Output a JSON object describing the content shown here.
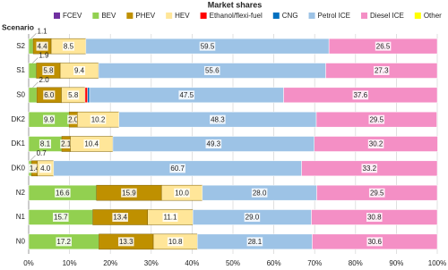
{
  "chart_data": {
    "type": "stacked-bar-horizontal",
    "title": "Market shares",
    "y_label": "Scenario",
    "categories": [
      "S2",
      "S1",
      "S0",
      "DK2",
      "DK1",
      "DK0",
      "N2",
      "N1",
      "N0"
    ],
    "series": [
      {
        "name": "FCEV",
        "color": "#7030a0",
        "values": [
          null,
          null,
          null,
          null,
          null,
          null,
          null,
          null,
          null
        ]
      },
      {
        "name": "BEV",
        "color": "#92d050",
        "values": [
          1.1,
          1.9,
          2.0,
          9.9,
          8.1,
          0.7,
          16.6,
          15.7,
          17.2
        ],
        "value_labels": [
          "1.1",
          "1.9",
          "2.0",
          "9.9",
          "8.1",
          "0.7",
          "16.6",
          "15.7",
          "17.2"
        ]
      },
      {
        "name": "PHEV",
        "color": "#bf9000",
        "values": [
          4.4,
          5.8,
          6.0,
          2.0,
          2.1,
          1.4,
          15.9,
          13.4,
          13.3
        ],
        "value_labels": [
          "4.4",
          "5.8",
          "6.0",
          "2.0",
          "2.1",
          "1.4",
          "15.9",
          "13.4",
          "13.3"
        ]
      },
      {
        "name": "HEV",
        "color": "#ffe699",
        "values": [
          8.5,
          9.4,
          5.8,
          10.2,
          10.4,
          4.0,
          10.0,
          11.1,
          10.8
        ],
        "value_labels": [
          "8.5",
          "9.4",
          "5.8",
          "10.2",
          "10.4",
          "4.0",
          "10.0",
          "11.1",
          "10.8"
        ]
      },
      {
        "name": "Ethanol/flexi-fuel",
        "color": "#ff0000",
        "values": [
          null,
          null,
          0.6,
          null,
          null,
          null,
          null,
          null,
          null
        ]
      },
      {
        "name": "CNG",
        "color": "#0070c0",
        "values": [
          null,
          null,
          0.5,
          null,
          null,
          null,
          null,
          null,
          null
        ]
      },
      {
        "name": "Petrol ICE",
        "color": "#9dc3e6",
        "values": [
          59.5,
          55.6,
          47.5,
          48.3,
          49.3,
          60.7,
          28.0,
          29.0,
          28.1
        ],
        "value_labels": [
          "59.5",
          "55.6",
          "47.5",
          "48.3",
          "49.3",
          "60.7",
          "28.0",
          "29.0",
          "28.1"
        ]
      },
      {
        "name": "Diesel ICE",
        "color": "#f48fc5",
        "values": [
          26.5,
          27.3,
          37.6,
          29.5,
          30.2,
          33.2,
          29.5,
          30.8,
          30.6
        ],
        "value_labels": [
          "26.5",
          "27.3",
          "37.6",
          "29.5",
          "30.2",
          "33.2",
          "29.5",
          "30.8",
          "30.6"
        ]
      },
      {
        "name": "Other",
        "color": "#ffff00",
        "values": [
          null,
          null,
          null,
          null,
          null,
          null,
          null,
          null,
          null
        ]
      }
    ],
    "xlim": [
      0,
      100
    ],
    "xticks": [
      {
        "value": 0,
        "label": "0%"
      },
      {
        "value": 10,
        "label": "10%"
      },
      {
        "value": 20,
        "label": "20%"
      },
      {
        "value": 30,
        "label": "30%"
      },
      {
        "value": 40,
        "label": "40%"
      },
      {
        "value": 50,
        "label": "50%"
      },
      {
        "value": 60,
        "label": "60%"
      },
      {
        "value": 70,
        "label": "70%"
      },
      {
        "value": 80,
        "label": "80%"
      },
      {
        "value": 90,
        "label": "90%"
      },
      {
        "value": 100,
        "label": "100%"
      }
    ],
    "grid": true
  }
}
